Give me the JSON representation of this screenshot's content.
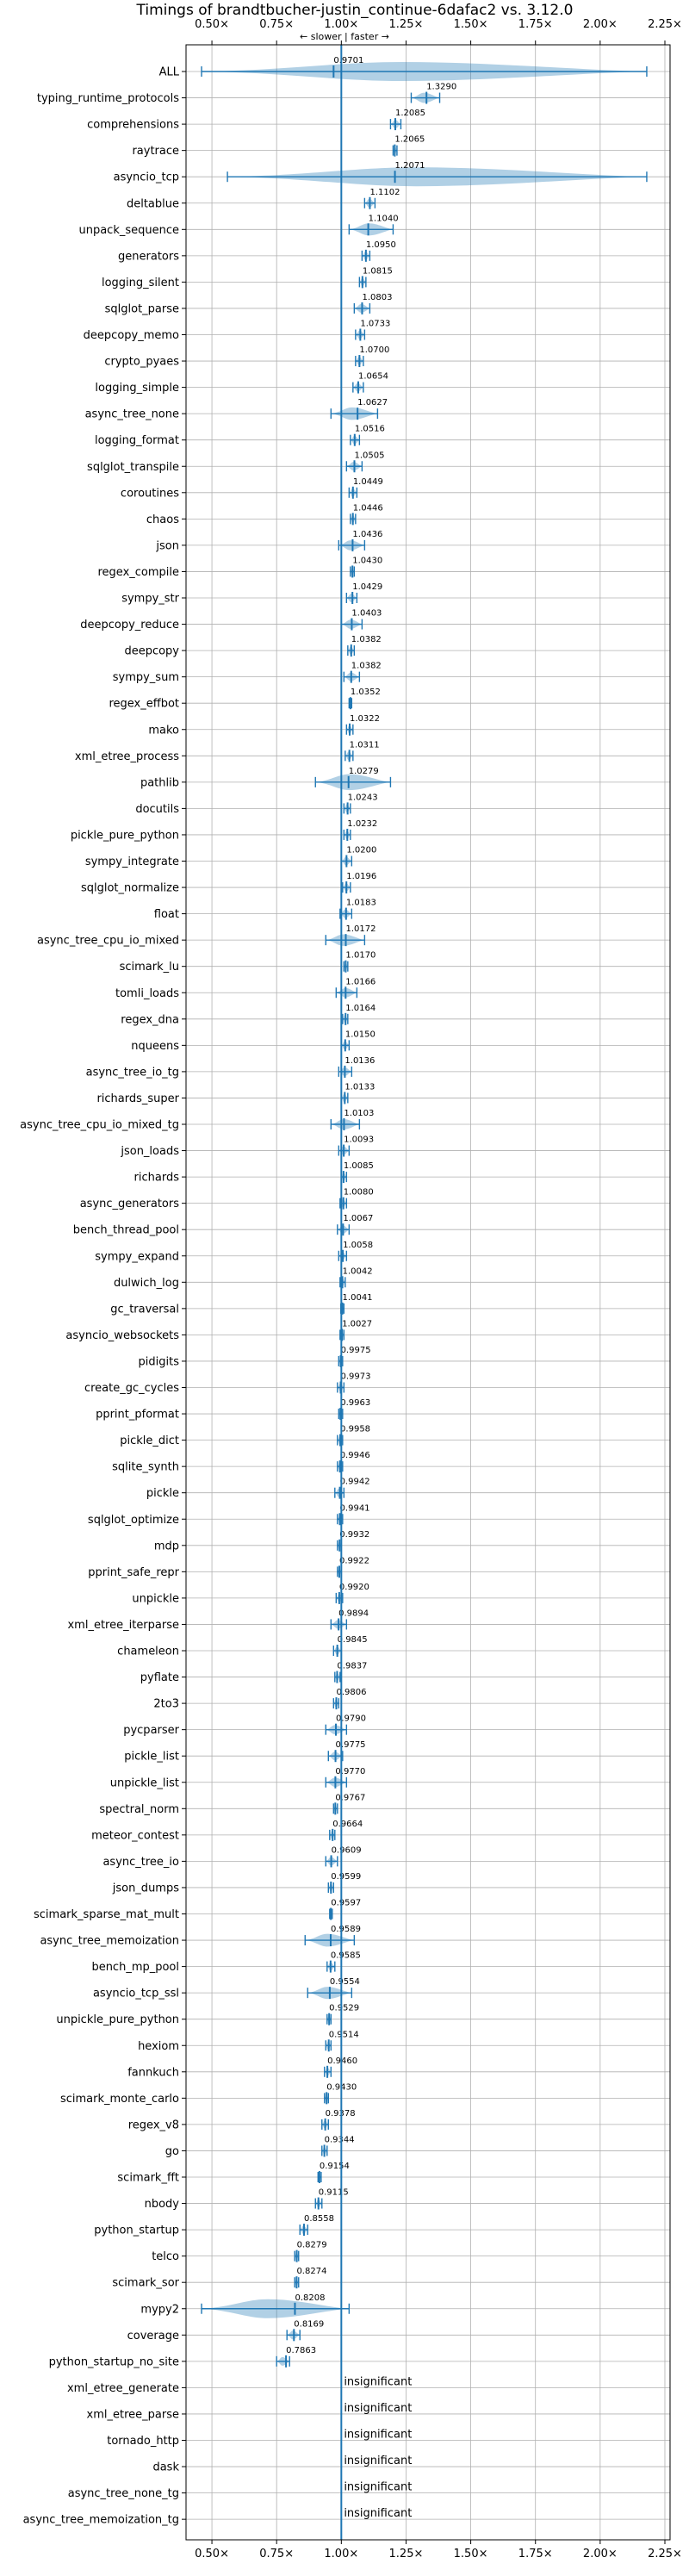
{
  "chart_data": {
    "type": "violin",
    "title": "Timings of brandtbucher-justin_continue-6dafac2 vs. 3.12.0",
    "annotation": "← slower | faster →",
    "xlim": [
      0.4,
      2.27
    ],
    "xticks": [
      0.5,
      0.75,
      1.0,
      1.25,
      1.5,
      1.75,
      2.0,
      2.25
    ],
    "xtick_labels": [
      "0.50×",
      "0.75×",
      "1.00×",
      "1.25×",
      "1.50×",
      "1.75×",
      "2.00×",
      "2.25×"
    ],
    "reference": 1.0,
    "colors": {
      "violin": "#1f77b4",
      "reference": "#1f77b4",
      "highlight": "#ff0000"
    },
    "insignificant_label": "insignificant",
    "benchmarks": [
      {
        "name": "ALL",
        "value": 0.9701,
        "label": "0.9701",
        "min": 0.46,
        "max": 2.18
      },
      {
        "name": "typing_runtime_protocols",
        "value": 1.329,
        "label": "1.3290",
        "min": 1.27,
        "max": 1.38
      },
      {
        "name": "comprehensions",
        "value": 1.2085,
        "label": "1.2085",
        "min": 1.19,
        "max": 1.23
      },
      {
        "name": "raytrace",
        "value": 1.2065,
        "label": "1.2065",
        "min": 1.2,
        "max": 1.215
      },
      {
        "name": "asyncio_tcp",
        "value": 1.2071,
        "label": "1.2071",
        "min": 0.56,
        "max": 2.18
      },
      {
        "name": "deltablue",
        "value": 1.1102,
        "label": "1.1102",
        "min": 1.09,
        "max": 1.13
      },
      {
        "name": "unpack_sequence",
        "value": 1.104,
        "label": "1.1040",
        "min": 1.03,
        "max": 1.2
      },
      {
        "name": "generators",
        "value": 1.095,
        "label": "1.0950",
        "min": 1.08,
        "max": 1.11
      },
      {
        "name": "logging_silent",
        "value": 1.0815,
        "label": "1.0815",
        "min": 1.07,
        "max": 1.095
      },
      {
        "name": "sqlglot_parse",
        "value": 1.0803,
        "label": "1.0803",
        "min": 1.05,
        "max": 1.11
      },
      {
        "name": "deepcopy_memo",
        "value": 1.0733,
        "label": "1.0733",
        "min": 1.055,
        "max": 1.09
      },
      {
        "name": "crypto_pyaes",
        "value": 1.07,
        "label": "1.0700",
        "min": 1.055,
        "max": 1.085
      },
      {
        "name": "logging_simple",
        "value": 1.0654,
        "label": "1.0654",
        "min": 1.045,
        "max": 1.085
      },
      {
        "name": "async_tree_none",
        "value": 1.0627,
        "label": "1.0627",
        "min": 0.96,
        "max": 1.14
      },
      {
        "name": "logging_format",
        "value": 1.0516,
        "label": "1.0516",
        "min": 1.035,
        "max": 1.07
      },
      {
        "name": "sqlglot_transpile",
        "value": 1.0505,
        "label": "1.0505",
        "min": 1.02,
        "max": 1.08
      },
      {
        "name": "coroutines",
        "value": 1.0449,
        "label": "1.0449",
        "min": 1.03,
        "max": 1.06
      },
      {
        "name": "chaos",
        "value": 1.0446,
        "label": "1.0446",
        "min": 1.035,
        "max": 1.055
      },
      {
        "name": "json",
        "value": 1.0436,
        "label": "1.0436",
        "min": 0.99,
        "max": 1.09
      },
      {
        "name": "regex_compile",
        "value": 1.043,
        "label": "1.0430",
        "min": 1.035,
        "max": 1.05
      },
      {
        "name": "sympy_str",
        "value": 1.0429,
        "label": "1.0429",
        "min": 1.02,
        "max": 1.06
      },
      {
        "name": "deepcopy_reduce",
        "value": 1.0403,
        "label": "1.0403",
        "min": 1.0,
        "max": 1.08
      },
      {
        "name": "deepcopy",
        "value": 1.0382,
        "label": "1.0382",
        "min": 1.025,
        "max": 1.05
      },
      {
        "name": "sympy_sum",
        "value": 1.0382,
        "label": "1.0382",
        "min": 1.01,
        "max": 1.07
      },
      {
        "name": "regex_effbot",
        "value": 1.0352,
        "label": "1.0352",
        "min": 1.03,
        "max": 1.04
      },
      {
        "name": "mako",
        "value": 1.0322,
        "label": "1.0322",
        "min": 1.02,
        "max": 1.045
      },
      {
        "name": "xml_etree_process",
        "value": 1.0311,
        "label": "1.0311",
        "min": 1.015,
        "max": 1.045
      },
      {
        "name": "pathlib",
        "value": 1.0279,
        "label": "1.0279",
        "min": 0.9,
        "max": 1.19
      },
      {
        "name": "docutils",
        "value": 1.0243,
        "label": "1.0243",
        "min": 1.01,
        "max": 1.035
      },
      {
        "name": "pickle_pure_python",
        "value": 1.0232,
        "label": "1.0232",
        "min": 1.01,
        "max": 1.035
      },
      {
        "name": "sympy_integrate",
        "value": 1.02,
        "label": "1.0200",
        "min": 1.0,
        "max": 1.04
      },
      {
        "name": "sqlglot_normalize",
        "value": 1.0196,
        "label": "1.0196",
        "min": 1.005,
        "max": 1.035
      },
      {
        "name": "float",
        "value": 1.0183,
        "label": "1.0183",
        "min": 0.995,
        "max": 1.04
      },
      {
        "name": "async_tree_cpu_io_mixed",
        "value": 1.0172,
        "label": "1.0172",
        "min": 0.94,
        "max": 1.09
      },
      {
        "name": "scimark_lu",
        "value": 1.017,
        "label": "1.0170",
        "min": 1.01,
        "max": 1.025
      },
      {
        "name": "tomli_loads",
        "value": 1.0166,
        "label": "1.0166",
        "min": 0.98,
        "max": 1.06
      },
      {
        "name": "regex_dna",
        "value": 1.0164,
        "label": "1.0164",
        "min": 1.005,
        "max": 1.025
      },
      {
        "name": "nqueens",
        "value": 1.015,
        "label": "1.0150",
        "min": 1.0,
        "max": 1.03
      },
      {
        "name": "async_tree_io_tg",
        "value": 1.0136,
        "label": "1.0136",
        "min": 0.99,
        "max": 1.04
      },
      {
        "name": "richards_super",
        "value": 1.0133,
        "label": "1.0133",
        "min": 1.0,
        "max": 1.025
      },
      {
        "name": "async_tree_cpu_io_mixed_tg",
        "value": 1.0103,
        "label": "1.0103",
        "min": 0.96,
        "max": 1.07
      },
      {
        "name": "json_loads",
        "value": 1.0093,
        "label": "1.0093",
        "min": 0.99,
        "max": 1.03
      },
      {
        "name": "richards",
        "value": 1.0085,
        "label": "1.0085",
        "min": 1.0,
        "max": 1.02
      },
      {
        "name": "async_generators",
        "value": 1.008,
        "label": "1.0080",
        "min": 0.995,
        "max": 1.02
      },
      {
        "name": "bench_thread_pool",
        "value": 1.0067,
        "label": "1.0067",
        "min": 0.985,
        "max": 1.03
      },
      {
        "name": "sympy_expand",
        "value": 1.0058,
        "label": "1.0058",
        "min": 0.99,
        "max": 1.02
      },
      {
        "name": "dulwich_log",
        "value": 1.0042,
        "label": "1.0042",
        "min": 0.995,
        "max": 1.015
      },
      {
        "name": "gc_traversal",
        "value": 1.0041,
        "label": "1.0041",
        "min": 0.998,
        "max": 1.01
      },
      {
        "name": "asyncio_websockets",
        "value": 1.0027,
        "label": "1.0027",
        "min": 0.995,
        "max": 1.01
      },
      {
        "name": "pidigits",
        "value": 0.9975,
        "label": "0.9975",
        "min": 0.99,
        "max": 1.005
      },
      {
        "name": "create_gc_cycles",
        "value": 0.9973,
        "label": "0.9973",
        "min": 0.985,
        "max": 1.01
      },
      {
        "name": "pprint_pformat",
        "value": 0.9963,
        "label": "0.9963",
        "min": 0.99,
        "max": 1.005
      },
      {
        "name": "pickle_dict",
        "value": 0.9958,
        "label": "0.9958",
        "min": 0.985,
        "max": 1.005
      },
      {
        "name": "sqlite_synth",
        "value": 0.9946,
        "label": "0.9946",
        "min": 0.985,
        "max": 1.005
      },
      {
        "name": "pickle",
        "value": 0.9942,
        "label": "0.9942",
        "min": 0.975,
        "max": 1.01
      },
      {
        "name": "sqlglot_optimize",
        "value": 0.9941,
        "label": "0.9941",
        "min": 0.985,
        "max": 1.005
      },
      {
        "name": "mdp",
        "value": 0.9932,
        "label": "0.9932",
        "min": 0.985,
        "max": 1.0
      },
      {
        "name": "pprint_safe_repr",
        "value": 0.9922,
        "label": "0.9922",
        "min": 0.985,
        "max": 1.0
      },
      {
        "name": "unpickle",
        "value": 0.992,
        "label": "0.9920",
        "min": 0.98,
        "max": 1.005
      },
      {
        "name": "xml_etree_iterparse",
        "value": 0.9894,
        "label": "0.9894",
        "min": 0.96,
        "max": 1.02
      },
      {
        "name": "chameleon",
        "value": 0.9845,
        "label": "0.9845",
        "min": 0.97,
        "max": 1.0
      },
      {
        "name": "pyflate",
        "value": 0.9837,
        "label": "0.9837",
        "min": 0.975,
        "max": 0.995
      },
      {
        "name": "2to3",
        "value": 0.9806,
        "label": "0.9806",
        "min": 0.97,
        "max": 0.99
      },
      {
        "name": "pycparser",
        "value": 0.979,
        "label": "0.9790",
        "min": 0.94,
        "max": 1.02
      },
      {
        "name": "pickle_list",
        "value": 0.9775,
        "label": "0.9775",
        "min": 0.95,
        "max": 1.005
      },
      {
        "name": "unpickle_list",
        "value": 0.977,
        "label": "0.9770",
        "min": 0.94,
        "max": 1.02
      },
      {
        "name": "spectral_norm",
        "value": 0.9767,
        "label": "0.9767",
        "min": 0.97,
        "max": 0.985
      },
      {
        "name": "meteor_contest",
        "value": 0.9664,
        "label": "0.9664",
        "min": 0.955,
        "max": 0.975
      },
      {
        "name": "async_tree_io",
        "value": 0.9609,
        "label": "0.9609",
        "min": 0.94,
        "max": 0.985
      },
      {
        "name": "json_dumps",
        "value": 0.9599,
        "label": "0.9599",
        "min": 0.95,
        "max": 0.97
      },
      {
        "name": "scimark_sparse_mat_mult",
        "value": 0.9597,
        "label": "0.9597",
        "min": 0.955,
        "max": 0.965
      },
      {
        "name": "async_tree_memoization",
        "value": 0.9589,
        "label": "0.9589",
        "min": 0.86,
        "max": 1.05
      },
      {
        "name": "bench_mp_pool",
        "value": 0.9585,
        "label": "0.9585",
        "min": 0.945,
        "max": 0.975
      },
      {
        "name": "asyncio_tcp_ssl",
        "value": 0.9554,
        "label": "0.9554",
        "min": 0.87,
        "max": 1.04
      },
      {
        "name": "unpickle_pure_python",
        "value": 0.9529,
        "label": "0.9529",
        "min": 0.945,
        "max": 0.96
      },
      {
        "name": "hexiom",
        "value": 0.9514,
        "label": "0.9514",
        "min": 0.94,
        "max": 0.96
      },
      {
        "name": "fannkuch",
        "value": 0.946,
        "label": "0.9460",
        "min": 0.935,
        "max": 0.96
      },
      {
        "name": "scimark_monte_carlo",
        "value": 0.943,
        "label": "0.9430",
        "min": 0.935,
        "max": 0.95
      },
      {
        "name": "regex_v8",
        "value": 0.9378,
        "label": "0.9378",
        "min": 0.925,
        "max": 0.95
      },
      {
        "name": "go",
        "value": 0.9344,
        "label": "0.9344",
        "min": 0.925,
        "max": 0.945
      },
      {
        "name": "scimark_fft",
        "value": 0.9154,
        "label": "0.9154",
        "min": 0.91,
        "max": 0.922
      },
      {
        "name": "nbody",
        "value": 0.9115,
        "label": "0.9115",
        "min": 0.9,
        "max": 0.925
      },
      {
        "name": "python_startup",
        "value": 0.8558,
        "label": "0.8558",
        "min": 0.84,
        "max": 0.87
      },
      {
        "name": "telco",
        "value": 0.8279,
        "label": "0.8279",
        "min": 0.82,
        "max": 0.835
      },
      {
        "name": "scimark_sor",
        "value": 0.8274,
        "label": "0.8274",
        "min": 0.82,
        "max": 0.835
      },
      {
        "name": "mypy2",
        "value": 0.8208,
        "label": "0.8208",
        "min": 0.46,
        "max": 1.03
      },
      {
        "name": "coverage",
        "value": 0.8169,
        "label": "0.8169",
        "min": 0.79,
        "max": 0.84
      },
      {
        "name": "python_startup_no_site",
        "value": 0.7863,
        "label": "0.7863",
        "min": 0.75,
        "max": 0.8
      },
      {
        "name": "xml_etree_generate",
        "value": null,
        "label": "insignificant"
      },
      {
        "name": "xml_etree_parse",
        "value": null,
        "label": "insignificant"
      },
      {
        "name": "tornado_http",
        "value": null,
        "label": "insignificant"
      },
      {
        "name": "dask",
        "value": null,
        "label": "insignificant"
      },
      {
        "name": "async_tree_none_tg",
        "value": null,
        "label": "insignificant"
      },
      {
        "name": "async_tree_memoization_tg",
        "value": null,
        "label": "insignificant"
      }
    ]
  }
}
